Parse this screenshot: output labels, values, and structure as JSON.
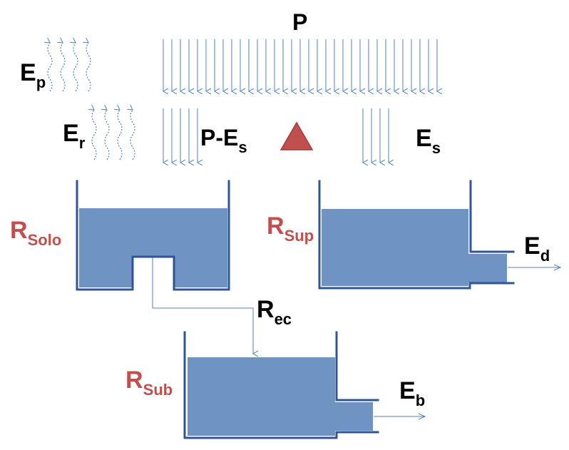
{
  "labels": {
    "precipitation": {
      "main": "P"
    },
    "ep": {
      "main": "E",
      "sub": "p"
    },
    "er": {
      "main": "E",
      "sub": "r"
    },
    "p_minus_es": {
      "main": "P-E",
      "sub": "s"
    },
    "es": {
      "main": "E",
      "sub": "s"
    },
    "ed": {
      "main": "E",
      "sub": "d"
    },
    "rec": {
      "main": "R",
      "sub": "ec"
    },
    "eb": {
      "main": "E",
      "sub": "b"
    },
    "r_solo": {
      "main": "R",
      "sub": "Solo"
    },
    "r_sup": {
      "main": "R",
      "sub": "Sup"
    },
    "r_sub": {
      "main": "R",
      "sub": "Sub"
    }
  },
  "colors": {
    "reservoir_label": "#c0504d",
    "water": "#6f93c3",
    "wall": "#2f5597",
    "arrow": "#4f81bd",
    "triangle": "#c0504d"
  },
  "icons": {
    "triangle": "red-triangle-icon"
  }
}
